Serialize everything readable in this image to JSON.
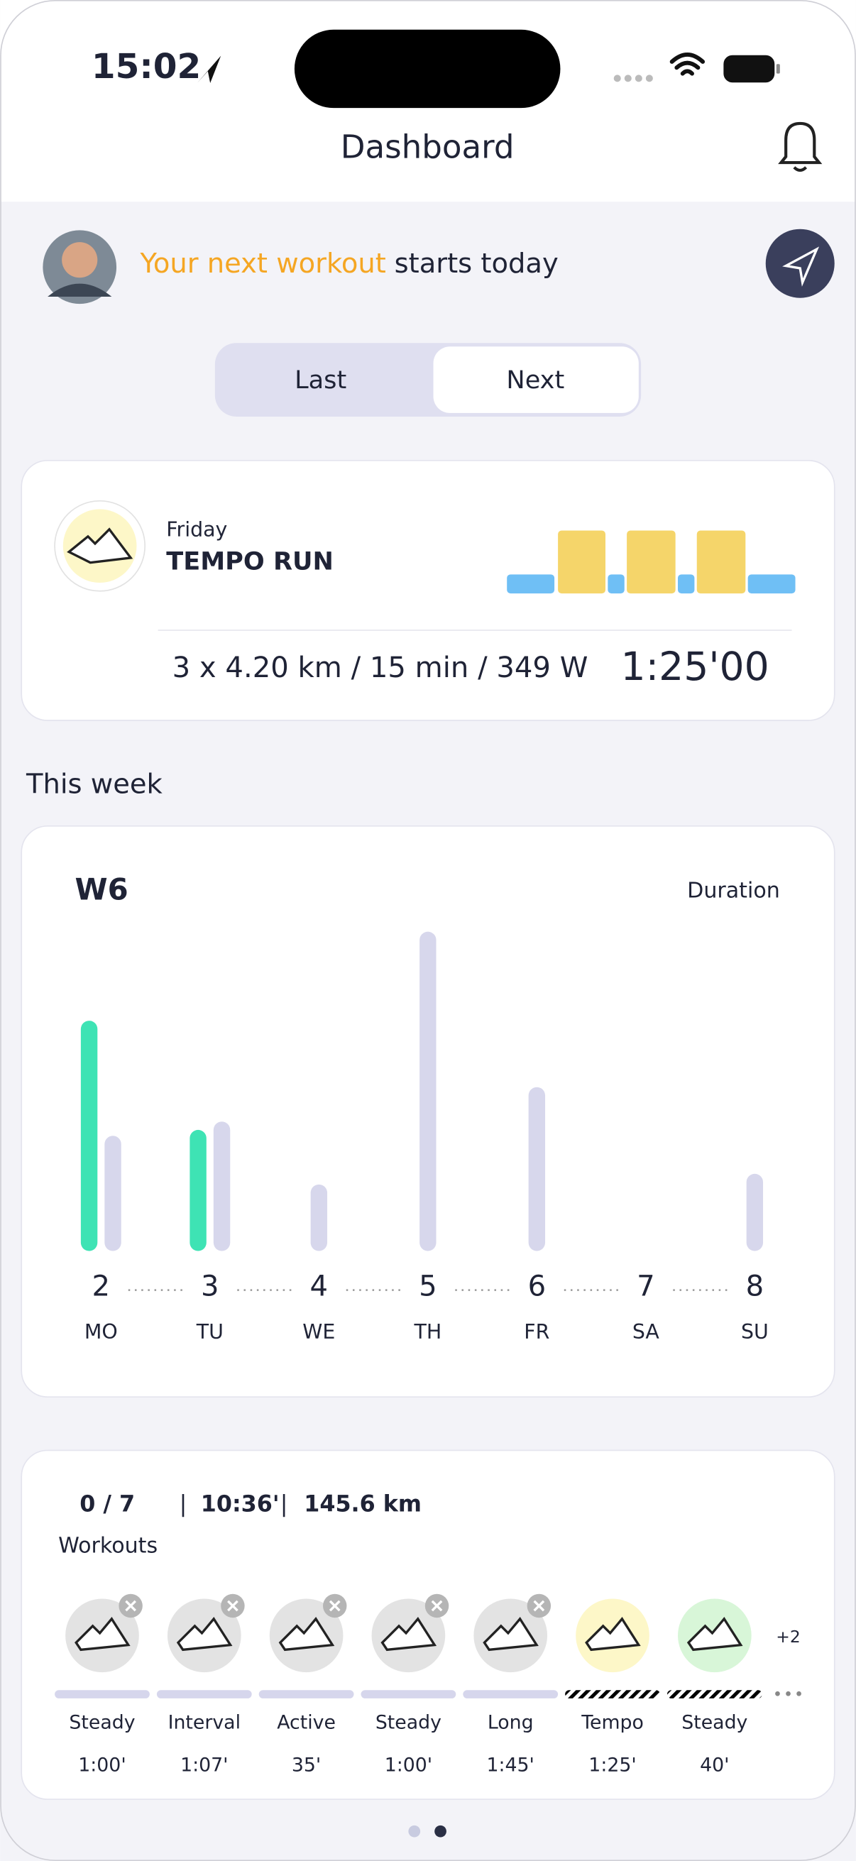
{
  "status_bar": {
    "time": "15:02"
  },
  "header": {
    "title": "Dashboard"
  },
  "banner": {
    "highlight": "Your next workout",
    "text": "starts today"
  },
  "toggle": {
    "options": [
      "Last",
      "Next"
    ]
  },
  "next_workout": {
    "day": "Friday",
    "name": "TEMPO RUN",
    "details": "3 x 4.20 km / 15 min / 349 W",
    "duration": "1:25'00"
  },
  "week": {
    "section_title": "This week",
    "week": "W6",
    "metric": "Duration",
    "chart": {
      "type": "bar",
      "ylim": [
        0,
        280
      ],
      "dates": [
        "2",
        "3",
        "4",
        "5",
        "6",
        "7",
        "8"
      ],
      "days": [
        "MO",
        "TU",
        "WE",
        "TH",
        "FR",
        "SA",
        "SU"
      ],
      "series": [
        {
          "color": "#3ee3b4",
          "values": [
            194,
            102,
            null,
            null,
            null,
            null,
            null
          ]
        },
        {
          "color": "#d7d7ec",
          "values": [
            97,
            109,
            56,
            269,
            138,
            null,
            65
          ]
        }
      ]
    }
  },
  "summary": {
    "completed": "0 / 7",
    "time": "10:36'",
    "distance": "145.6 km",
    "label": "Workouts",
    "more": "+2",
    "workouts": [
      {
        "name": "Steady",
        "duration": "1:00'",
        "icon_color": "#e3e3e3",
        "bar_color": "#d6d6ec",
        "hatched": false,
        "removable": true
      },
      {
        "name": "Interval",
        "duration": "1:07'",
        "icon_color": "#e3e3e3",
        "bar_color": "#d6d6ec",
        "hatched": false,
        "removable": true
      },
      {
        "name": "Active",
        "duration": "35'",
        "icon_color": "#e3e3e3",
        "bar_color": "#d6d6ec",
        "hatched": false,
        "removable": true
      },
      {
        "name": "Steady",
        "duration": "1:00'",
        "icon_color": "#e3e3e3",
        "bar_color": "#d6d6ec",
        "hatched": false,
        "removable": true
      },
      {
        "name": "Long",
        "duration": "1:45'",
        "icon_color": "#e3e3e3",
        "bar_color": "#d6d6ec",
        "hatched": false,
        "removable": true
      },
      {
        "name": "Tempo",
        "duration": "1:25'",
        "icon_color": "#fdf7c8",
        "bar_color": "#e6d27a",
        "hatched": true,
        "removable": false
      },
      {
        "name": "Steady",
        "duration": "40'",
        "icon_color": "#d8f6d8",
        "bar_color": "#8fdc9f",
        "hatched": true,
        "removable": false
      }
    ]
  }
}
